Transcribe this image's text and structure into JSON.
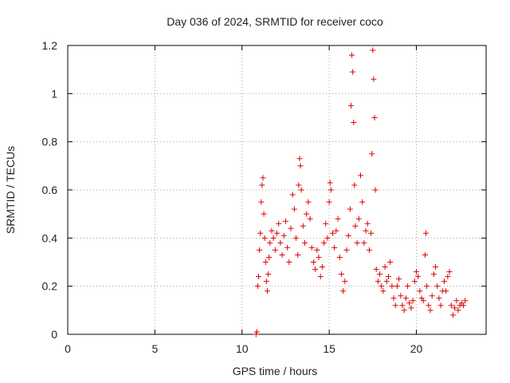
{
  "chart_data": {
    "type": "scatter",
    "title": "Day 036 of 2024, SRMTID for receiver coco",
    "xlabel": "GPS time / hours",
    "ylabel": "SRMTID / TECUs",
    "xlim": [
      0,
      24
    ],
    "ylim": [
      0,
      1.2
    ],
    "xticks": [
      0,
      5,
      10,
      15,
      20
    ],
    "xtick_labels": [
      "0",
      "5",
      "10",
      "15",
      "20"
    ],
    "yticks": [
      0,
      0.2,
      0.4,
      0.6,
      0.8,
      1.0,
      1.2
    ],
    "ytick_labels": [
      "0",
      "0.2",
      "0.4",
      "0.6",
      "0.8",
      "1",
      "1.2"
    ],
    "grid": true,
    "marker": "+",
    "color": "#e00000",
    "series": [
      {
        "name": "SRMTID",
        "points": [
          [
            10.8,
            0.0
          ],
          [
            10.85,
            0.01
          ],
          [
            10.9,
            0.2
          ],
          [
            10.95,
            0.24
          ],
          [
            11.0,
            0.35
          ],
          [
            11.05,
            0.42
          ],
          [
            11.1,
            0.55
          ],
          [
            11.15,
            0.62
          ],
          [
            11.2,
            0.65
          ],
          [
            11.25,
            0.5
          ],
          [
            11.3,
            0.4
          ],
          [
            11.35,
            0.3
          ],
          [
            11.4,
            0.22
          ],
          [
            11.45,
            0.18
          ],
          [
            11.5,
            0.25
          ],
          [
            11.55,
            0.32
          ],
          [
            11.6,
            0.38
          ],
          [
            11.7,
            0.43
          ],
          [
            11.8,
            0.4
          ],
          [
            11.9,
            0.35
          ],
          [
            12.0,
            0.42
          ],
          [
            12.1,
            0.46
          ],
          [
            12.2,
            0.38
          ],
          [
            12.3,
            0.33
          ],
          [
            12.4,
            0.41
          ],
          [
            12.5,
            0.47
          ],
          [
            12.6,
            0.36
          ],
          [
            12.7,
            0.3
          ],
          [
            12.8,
            0.44
          ],
          [
            12.9,
            0.58
          ],
          [
            13.0,
            0.52
          ],
          [
            13.1,
            0.4
          ],
          [
            13.2,
            0.33
          ],
          [
            13.25,
            0.62
          ],
          [
            13.3,
            0.73
          ],
          [
            13.35,
            0.7
          ],
          [
            13.4,
            0.6
          ],
          [
            13.5,
            0.45
          ],
          [
            13.6,
            0.38
          ],
          [
            13.7,
            0.5
          ],
          [
            13.8,
            0.55
          ],
          [
            13.9,
            0.48
          ],
          [
            14.0,
            0.36
          ],
          [
            14.1,
            0.3
          ],
          [
            14.2,
            0.27
          ],
          [
            14.3,
            0.35
          ],
          [
            14.4,
            0.32
          ],
          [
            14.5,
            0.24
          ],
          [
            14.6,
            0.28
          ],
          [
            14.7,
            0.38
          ],
          [
            14.8,
            0.46
          ],
          [
            14.9,
            0.4
          ],
          [
            15.0,
            0.55
          ],
          [
            15.05,
            0.63
          ],
          [
            15.1,
            0.6
          ],
          [
            15.2,
            0.42
          ],
          [
            15.3,
            0.36
          ],
          [
            15.4,
            0.43
          ],
          [
            15.5,
            0.48
          ],
          [
            15.6,
            0.32
          ],
          [
            15.7,
            0.25
          ],
          [
            15.8,
            0.18
          ],
          [
            15.9,
            0.22
          ],
          [
            16.0,
            0.35
          ],
          [
            16.1,
            0.41
          ],
          [
            16.2,
            0.52
          ],
          [
            16.25,
            0.95
          ],
          [
            16.3,
            1.16
          ],
          [
            16.35,
            1.09
          ],
          [
            16.4,
            0.88
          ],
          [
            16.45,
            0.62
          ],
          [
            16.5,
            0.45
          ],
          [
            16.6,
            0.38
          ],
          [
            16.7,
            0.48
          ],
          [
            16.8,
            0.66
          ],
          [
            16.9,
            0.55
          ],
          [
            17.0,
            0.38
          ],
          [
            17.1,
            0.43
          ],
          [
            17.2,
            0.46
          ],
          [
            17.3,
            0.35
          ],
          [
            17.4,
            0.42
          ],
          [
            17.45,
            0.75
          ],
          [
            17.5,
            1.18
          ],
          [
            17.55,
            1.06
          ],
          [
            17.6,
            0.9
          ],
          [
            17.65,
            0.6
          ],
          [
            17.7,
            0.27
          ],
          [
            17.8,
            0.22
          ],
          [
            17.9,
            0.25
          ],
          [
            18.0,
            0.2
          ],
          [
            18.1,
            0.18
          ],
          [
            18.2,
            0.28
          ],
          [
            18.3,
            0.22
          ],
          [
            18.4,
            0.24
          ],
          [
            18.5,
            0.3
          ],
          [
            18.6,
            0.2
          ],
          [
            18.7,
            0.15
          ],
          [
            18.8,
            0.12
          ],
          [
            18.9,
            0.2
          ],
          [
            19.0,
            0.23
          ],
          [
            19.1,
            0.16
          ],
          [
            19.2,
            0.12
          ],
          [
            19.3,
            0.1
          ],
          [
            19.4,
            0.15
          ],
          [
            19.5,
            0.2
          ],
          [
            19.6,
            0.13
          ],
          [
            19.7,
            0.11
          ],
          [
            19.8,
            0.14
          ],
          [
            19.9,
            0.22
          ],
          [
            20.0,
            0.26
          ],
          [
            20.1,
            0.24
          ],
          [
            20.2,
            0.18
          ],
          [
            20.3,
            0.15
          ],
          [
            20.4,
            0.14
          ],
          [
            20.5,
            0.33
          ],
          [
            20.55,
            0.42
          ],
          [
            20.6,
            0.2
          ],
          [
            20.7,
            0.12
          ],
          [
            20.8,
            0.1
          ],
          [
            20.9,
            0.16
          ],
          [
            21.0,
            0.25
          ],
          [
            21.1,
            0.28
          ],
          [
            21.2,
            0.2
          ],
          [
            21.3,
            0.15
          ],
          [
            21.4,
            0.12
          ],
          [
            21.5,
            0.18
          ],
          [
            21.6,
            0.22
          ],
          [
            21.7,
            0.18
          ],
          [
            21.8,
            0.24
          ],
          [
            21.9,
            0.26
          ],
          [
            22.0,
            0.12
          ],
          [
            22.1,
            0.08
          ],
          [
            22.2,
            0.11
          ],
          [
            22.3,
            0.14
          ],
          [
            22.4,
            0.1
          ],
          [
            22.5,
            0.12
          ],
          [
            22.6,
            0.13
          ],
          [
            22.7,
            0.12
          ],
          [
            22.8,
            0.14
          ]
        ]
      }
    ]
  }
}
